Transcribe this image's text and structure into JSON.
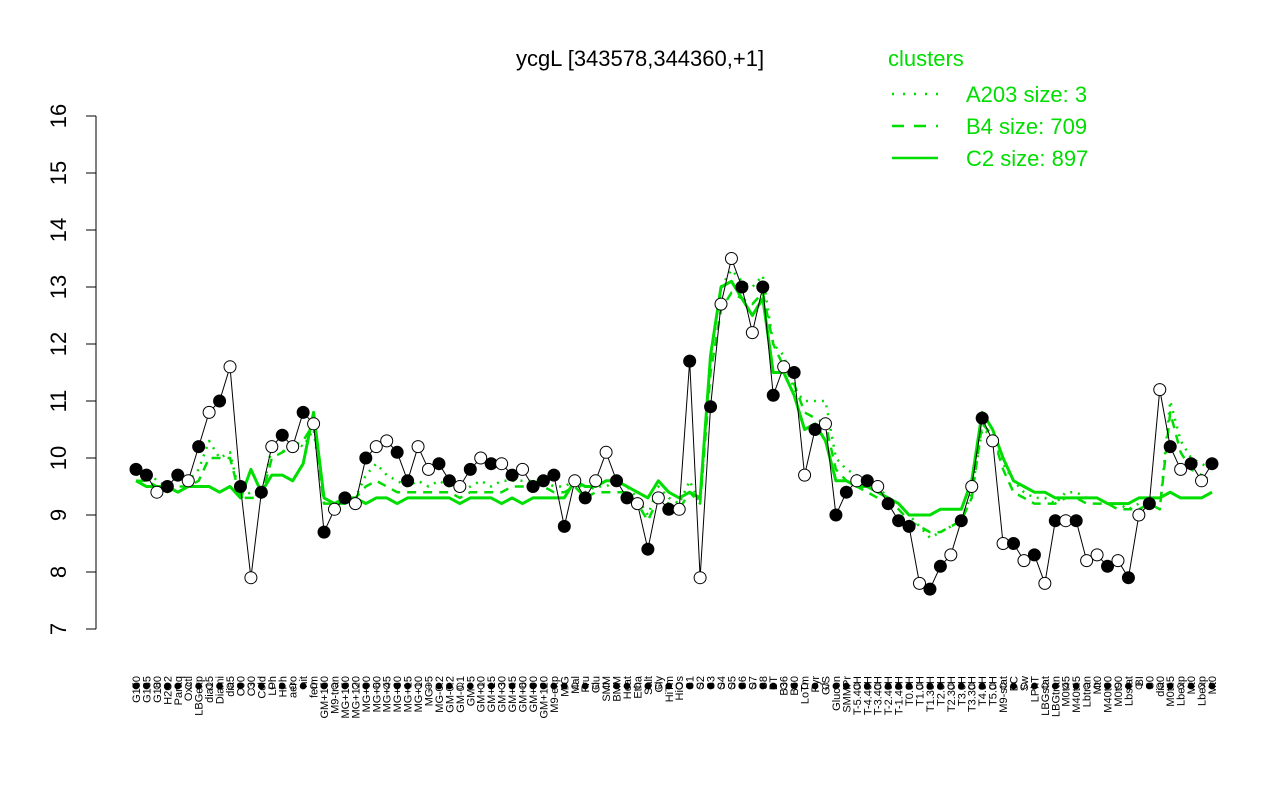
{
  "chart_data": {
    "type": "line",
    "title": "ycgL [343578,344360,+1]",
    "xlabel": "",
    "ylabel": "",
    "ylim": [
      7,
      16
    ],
    "y_ticks": [
      7,
      8,
      9,
      10,
      11,
      12,
      13,
      14,
      15,
      16
    ],
    "grid": false,
    "legend": {
      "title": "clusters",
      "placement": "top-right",
      "entries": [
        {
          "label": "A203 size: 3",
          "style": "dotted"
        },
        {
          "label": "B4 size: 709",
          "style": "dashed"
        },
        {
          "label": "C2 size: 897",
          "style": "solid"
        }
      ]
    },
    "colors": {
      "cluster_lines": "#00dd00",
      "points_open": "#ffffff",
      "points_filled": "#000000"
    },
    "x_tick_labels": [
      "G150",
      "G135",
      "G180",
      "H2O2",
      "Paraq",
      "Oxctl",
      "LBGexp",
      "dia15",
      "Diami",
      "dia5",
      "C90",
      "C30",
      "Cold",
      "LPh",
      "HPh",
      "aero",
      "nit",
      "ferm",
      "GM+150",
      "M9-tran",
      "MG+150",
      "MG+120",
      "MG+90",
      "MG+60",
      "MG+45",
      "MG+30",
      "MG+15",
      "MG+10",
      "MG+5",
      "MG-0.2",
      "GM-0.2",
      "GM-0.1",
      "GM+5",
      "GM+10",
      "GM+15",
      "GM+30",
      "GM+45",
      "GM+60",
      "GM+90",
      "GM+120",
      "M9-exp",
      "M/G",
      "Mal",
      "Fru",
      "Glu",
      "SMM",
      "BMM",
      "Heat",
      "Etha",
      "Salt",
      "Gly",
      "HiTm",
      "HiOs",
      "S1",
      "S2",
      "S3",
      "S4",
      "S5",
      "S6",
      "S7",
      "S8",
      "BT",
      "B36",
      "B60",
      "LoTm",
      "Pyr",
      "G/S",
      "Glucon",
      "SMMPr",
      "T-5.40H",
      "T-4.40H",
      "T-3.40H",
      "T-2.40H",
      "T-1.40H",
      "T0.0H",
      "T1.0H",
      "T1.30H",
      "T2.0H",
      "T2.30H",
      "T3.0H",
      "T3.30H",
      "T4.0H",
      "T5.0H",
      "M9-stat",
      "BC",
      "Sw",
      "LPhT",
      "LBGstat",
      "LBGtran",
      "M0t45",
      "M40t45",
      "Lbtran",
      "Mt0",
      "M40t90",
      "M0t90",
      "Lbstat",
      "BI",
      "S0",
      "dia0",
      "M0t45",
      "Lbexp",
      "Mt0",
      "Lbexp",
      "Mt0"
    ],
    "series": [
      {
        "name": "A203 size: 3",
        "values": [
          9.7,
          9.8,
          9.6,
          9.5,
          9.7,
          9.6,
          9.8,
          10.3,
          10.0,
          10.1,
          9.3,
          9.4,
          9.3,
          10.2,
          10.1,
          10.3,
          10.2,
          10.5,
          9.2,
          9.2,
          9.3,
          9.3,
          9.7,
          9.9,
          9.7,
          9.6,
          9.5,
          9.6,
          9.5,
          9.6,
          9.5,
          9.4,
          9.5,
          9.6,
          9.5,
          9.6,
          9.6,
          9.6,
          9.6,
          9.6,
          9.5,
          9.5,
          9.6,
          9.4,
          9.5,
          9.5,
          9.6,
          9.5,
          9.3,
          9.0,
          9.5,
          9.3,
          9.2,
          9.6,
          9.2,
          11.8,
          13.0,
          13.3,
          13.1,
          13.0,
          13.2,
          12.0,
          11.8,
          11.2,
          11.0,
          11.0,
          11.0,
          10.0,
          9.8,
          9.7,
          9.6,
          9.5,
          9.3,
          9.2,
          9.0,
          8.8,
          8.6,
          8.7,
          8.8,
          8.9,
          9.4,
          10.5,
          10.4,
          9.9,
          9.6,
          9.4,
          9.3,
          9.3,
          9.2,
          9.4,
          9.4,
          9.3,
          9.3,
          9.2,
          9.2,
          9.1,
          9.2,
          9.2,
          9.1,
          11.0,
          10.3,
          10.0,
          9.9,
          9.8
        ],
        "style": "dotted"
      },
      {
        "name": "B4 size: 709",
        "values": [
          9.6,
          9.6,
          9.5,
          9.4,
          9.5,
          9.5,
          9.6,
          10.0,
          10.0,
          10.0,
          9.3,
          9.3,
          9.3,
          10.0,
          10.1,
          10.2,
          10.3,
          10.6,
          9.2,
          9.2,
          9.2,
          9.3,
          9.5,
          9.6,
          9.5,
          9.4,
          9.4,
          9.4,
          9.4,
          9.4,
          9.4,
          9.3,
          9.4,
          9.4,
          9.4,
          9.4,
          9.5,
          9.5,
          9.5,
          9.5,
          9.4,
          9.4,
          9.5,
          9.3,
          9.4,
          9.4,
          9.4,
          9.4,
          9.2,
          8.9,
          9.3,
          9.2,
          9.1,
          9.4,
          9.2,
          11.5,
          12.6,
          12.9,
          12.8,
          12.7,
          12.9,
          12.0,
          11.6,
          11.3,
          10.8,
          10.7,
          10.6,
          9.8,
          9.6,
          9.5,
          9.4,
          9.3,
          9.2,
          9.1,
          8.9,
          8.8,
          8.7,
          8.7,
          8.8,
          8.9,
          9.3,
          10.6,
          10.4,
          9.8,
          9.4,
          9.3,
          9.2,
          9.2,
          9.2,
          9.3,
          9.3,
          9.2,
          9.2,
          9.2,
          9.1,
          9.1,
          9.1,
          9.2,
          9.1,
          10.8,
          10.1,
          9.8,
          9.7,
          9.6
        ],
        "style": "dashed"
      },
      {
        "name": "C2 size: 897",
        "values": [
          9.6,
          9.5,
          9.5,
          9.5,
          9.4,
          9.5,
          9.5,
          9.5,
          9.4,
          9.5,
          9.3,
          9.8,
          9.4,
          9.7,
          9.7,
          9.6,
          9.9,
          10.8,
          9.3,
          9.2,
          9.3,
          9.3,
          9.2,
          9.3,
          9.3,
          9.2,
          9.3,
          9.3,
          9.3,
          9.3,
          9.3,
          9.2,
          9.3,
          9.3,
          9.3,
          9.2,
          9.3,
          9.2,
          9.3,
          9.3,
          9.3,
          9.3,
          9.6,
          9.5,
          9.5,
          9.6,
          9.6,
          9.5,
          9.4,
          9.3,
          9.6,
          9.4,
          9.3,
          9.4,
          9.3,
          11.8,
          13.0,
          13.1,
          12.8,
          12.5,
          12.8,
          11.5,
          11.5,
          11.1,
          10.5,
          10.6,
          10.3,
          9.6,
          9.6,
          9.5,
          9.5,
          9.4,
          9.3,
          9.2,
          9.0,
          9.0,
          9.0,
          9.1,
          9.1,
          9.1,
          9.6,
          10.8,
          10.5,
          10.0,
          9.6,
          9.5,
          9.4,
          9.4,
          9.3,
          9.3,
          9.3,
          9.3,
          9.3,
          9.2,
          9.2,
          9.2,
          9.3,
          9.3,
          9.3,
          9.4,
          9.3,
          9.3,
          9.3,
          9.4
        ],
        "style": "solid"
      },
      {
        "name": "",
        "points": [
          [
            9.8,
            1
          ],
          [
            9.7,
            1
          ],
          [
            9.4,
            0
          ],
          [
            9.5,
            1
          ],
          [
            9.7,
            1
          ],
          [
            9.6,
            0
          ],
          [
            10.2,
            1
          ],
          [
            10.8,
            0
          ],
          [
            11.0,
            1
          ],
          [
            11.6,
            0
          ],
          [
            9.5,
            1
          ],
          [
            7.9,
            0
          ],
          [
            9.4,
            1
          ],
          [
            10.2,
            0
          ],
          [
            10.4,
            1
          ],
          [
            10.2,
            0
          ],
          [
            10.8,
            1
          ],
          [
            10.6,
            0
          ],
          [
            8.7,
            1
          ],
          [
            9.1,
            0
          ],
          [
            9.3,
            1
          ],
          [
            9.2,
            0
          ],
          [
            10.0,
            1
          ],
          [
            10.2,
            0
          ],
          [
            10.3,
            0
          ],
          [
            10.1,
            1
          ],
          [
            9.6,
            1
          ],
          [
            10.2,
            0
          ],
          [
            9.8,
            0
          ],
          [
            9.9,
            1
          ],
          [
            9.6,
            1
          ],
          [
            9.5,
            0
          ],
          [
            9.8,
            1
          ],
          [
            10.0,
            0
          ],
          [
            9.9,
            1
          ],
          [
            9.9,
            0
          ],
          [
            9.7,
            1
          ],
          [
            9.8,
            0
          ],
          [
            9.5,
            1
          ],
          [
            9.6,
            1
          ],
          [
            9.7,
            1
          ],
          [
            8.8,
            1
          ],
          [
            9.6,
            0
          ],
          [
            9.3,
            1
          ],
          [
            9.6,
            0
          ],
          [
            10.1,
            0
          ],
          [
            9.6,
            1
          ],
          [
            9.3,
            1
          ],
          [
            9.2,
            0
          ],
          [
            8.4,
            1
          ],
          [
            9.3,
            0
          ],
          [
            9.1,
            1
          ],
          [
            9.1,
            0
          ],
          [
            11.7,
            1
          ],
          [
            7.9,
            0
          ],
          [
            10.9,
            1
          ],
          [
            12.7,
            0
          ],
          [
            13.5,
            0
          ],
          [
            13.0,
            1
          ],
          [
            12.2,
            0
          ],
          [
            13.0,
            1
          ],
          [
            11.1,
            1
          ],
          [
            11.6,
            0
          ],
          [
            11.5,
            1
          ],
          [
            9.7,
            0
          ],
          [
            10.5,
            1
          ],
          [
            10.6,
            0
          ],
          [
            9.0,
            1
          ],
          [
            9.4,
            1
          ],
          [
            9.6,
            0
          ],
          [
            9.6,
            1
          ],
          [
            9.5,
            0
          ],
          [
            9.2,
            1
          ],
          [
            8.9,
            1
          ],
          [
            8.8,
            1
          ],
          [
            7.8,
            0
          ],
          [
            7.7,
            1
          ],
          [
            8.1,
            1
          ],
          [
            8.3,
            0
          ],
          [
            8.9,
            1
          ],
          [
            9.5,
            0
          ],
          [
            10.7,
            1
          ],
          [
            10.3,
            0
          ],
          [
            8.5,
            0
          ],
          [
            8.5,
            1
          ],
          [
            8.2,
            0
          ],
          [
            8.3,
            1
          ],
          [
            7.8,
            0
          ],
          [
            8.9,
            1
          ],
          [
            8.9,
            0
          ],
          [
            8.9,
            1
          ],
          [
            8.2,
            0
          ],
          [
            8.3,
            0
          ],
          [
            8.1,
            1
          ],
          [
            8.2,
            0
          ],
          [
            7.9,
            1
          ],
          [
            9.0,
            0
          ],
          [
            9.2,
            1
          ],
          [
            11.2,
            0
          ],
          [
            10.2,
            1
          ],
          [
            9.8,
            0
          ],
          [
            9.9,
            1
          ],
          [
            9.6,
            0
          ],
          [
            9.9,
            1
          ]
        ],
        "style": "points (value, filled)"
      }
    ]
  }
}
